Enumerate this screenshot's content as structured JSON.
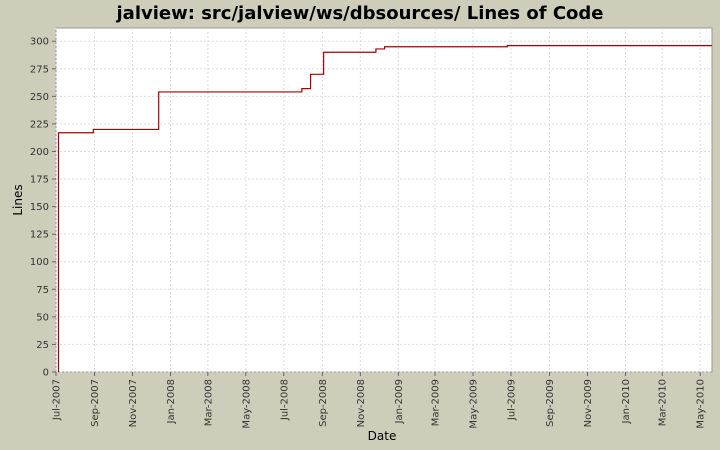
{
  "chart_data": {
    "type": "line",
    "title": "jalview: src/jalview/ws/dbsources/ Lines of Code",
    "xlabel": "Date",
    "ylabel": "Lines",
    "x_range": [
      "2007-07-01",
      "2010-05-20"
    ],
    "ylim": [
      0,
      312
    ],
    "y_ticks": [
      0,
      25,
      50,
      75,
      100,
      125,
      150,
      175,
      200,
      225,
      250,
      275,
      300
    ],
    "x_ticks": [
      {
        "date": "2007-07-01",
        "label": "Jul-2007"
      },
      {
        "date": "2007-09-01",
        "label": "Sep-2007"
      },
      {
        "date": "2007-11-01",
        "label": "Nov-2007"
      },
      {
        "date": "2008-01-01",
        "label": "Jan-2008"
      },
      {
        "date": "2008-03-01",
        "label": "Mar-2008"
      },
      {
        "date": "2008-05-01",
        "label": "May-2008"
      },
      {
        "date": "2008-07-01",
        "label": "Jul-2008"
      },
      {
        "date": "2008-09-01",
        "label": "Sep-2008"
      },
      {
        "date": "2008-11-01",
        "label": "Nov-2008"
      },
      {
        "date": "2009-01-01",
        "label": "Jan-2009"
      },
      {
        "date": "2009-03-01",
        "label": "Mar-2009"
      },
      {
        "date": "2009-05-01",
        "label": "May-2009"
      },
      {
        "date": "2009-07-01",
        "label": "Jul-2009"
      },
      {
        "date": "2009-09-01",
        "label": "Sep-2009"
      },
      {
        "date": "2009-11-01",
        "label": "Nov-2009"
      },
      {
        "date": "2010-01-01",
        "label": "Jan-2010"
      },
      {
        "date": "2010-03-01",
        "label": "Mar-2010"
      },
      {
        "date": "2010-05-01",
        "label": "May-2010"
      }
    ],
    "grid": true,
    "series": [
      {
        "color": "#aa0000",
        "step": true,
        "points": [
          {
            "x": "2007-07-05",
            "y": 0
          },
          {
            "x": "2007-07-05",
            "y": 217
          },
          {
            "x": "2007-08-30",
            "y": 220
          },
          {
            "x": "2007-12-13",
            "y": 254
          },
          {
            "x": "2008-07-30",
            "y": 257
          },
          {
            "x": "2008-08-13",
            "y": 270
          },
          {
            "x": "2008-09-03",
            "y": 290
          },
          {
            "x": "2008-11-26",
            "y": 293
          },
          {
            "x": "2008-12-10",
            "y": 295
          },
          {
            "x": "2009-06-25",
            "y": 296
          },
          {
            "x": "2010-05-20",
            "y": 296
          }
        ]
      }
    ]
  }
}
